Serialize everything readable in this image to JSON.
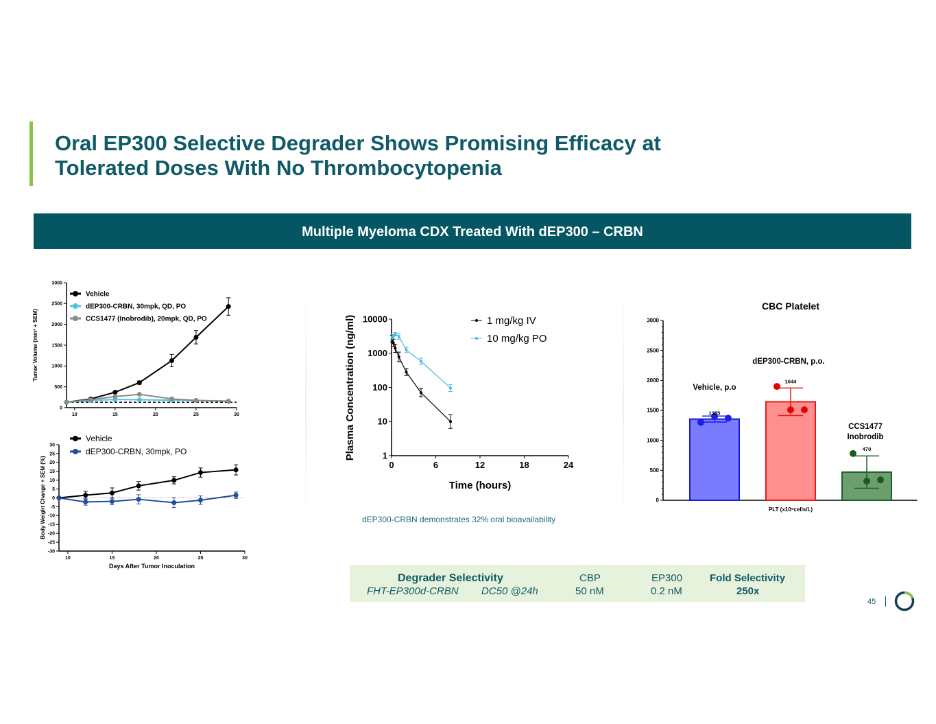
{
  "slide": {
    "title_line1": "Oral EP300 Selective Degrader Shows Promising Efficacy at",
    "title_line2": "Tolerated Doses With No Thrombocytopenia",
    "banner": "Multiple Myeloma CDX Treated With dEP300 – CRBN",
    "caption": "dEP300-CRBN demonstrates 32% oral bioavailability",
    "page_number": "45"
  },
  "selectivity": {
    "header": "Degrader Selectivity",
    "compound": "FHT-EP300d-CRBN",
    "metric": "DC50 @24h",
    "cbp_label": "CBP",
    "cbp_value": "50 nM",
    "ep300_label": "EP300",
    "ep300_value": "0.2 nM",
    "fold_label": "Fold Selectivity",
    "fold_value": "250x"
  },
  "chart_data": [
    {
      "type": "line",
      "title": "",
      "xlabel": "",
      "ylabel": "Tumor Volume (mm³ + SEM)",
      "xlim": [
        9,
        30
      ],
      "ylim": [
        0,
        3000
      ],
      "xticks": [
        10,
        15,
        20,
        25,
        30
      ],
      "yticks": [
        0,
        500,
        1000,
        1500,
        2000,
        2500,
        3000
      ],
      "legend": "top-left",
      "x": [
        9,
        12,
        15,
        18,
        22,
        25,
        29
      ],
      "series": [
        {
          "name": "Vehicle",
          "color": "#000000",
          "values": [
            130,
            210,
            370,
            600,
            1130,
            1690,
            2430
          ],
          "err": [
            0,
            20,
            25,
            40,
            150,
            160,
            210
          ]
        },
        {
          "name": "dEP300-CRBN, 30mpk, QD, PO",
          "color": "#4fc3e0",
          "values": [
            130,
            170,
            195,
            190,
            180,
            170,
            160
          ],
          "err": [
            0,
            0,
            0,
            0,
            0,
            0,
            0
          ]
        },
        {
          "name": "CCS1477 (Inobrodib), 20mpk, QD, PO",
          "color": "#8a8a8a",
          "values": [
            130,
            190,
            265,
            320,
            210,
            175,
            150
          ],
          "err": [
            0,
            0,
            0,
            0,
            0,
            0,
            0
          ]
        }
      ]
    },
    {
      "type": "line",
      "title": "",
      "xlabel": "Days After Tumor Inoculation",
      "ylabel": "Body Weight Change + SEM (%)",
      "xlim": [
        9,
        30
      ],
      "ylim": [
        -30,
        30
      ],
      "xticks": [
        10,
        15,
        20,
        25,
        30
      ],
      "yticks": [
        -30,
        -25,
        -20,
        -15,
        -10,
        -5,
        0,
        5,
        10,
        15,
        20,
        25,
        30
      ],
      "legend": "top-left",
      "x": [
        9,
        12,
        15,
        18,
        22,
        25,
        29
      ],
      "series": [
        {
          "name": "Vehicle",
          "color": "#000000",
          "values": [
            0,
            1.5,
            2.8,
            6.8,
            9.9,
            14.3,
            15.8
          ],
          "err": [
            0,
            2.2,
            2.8,
            2.4,
            2,
            2.6,
            2.9
          ]
        },
        {
          "name": "dEP300-CRBN, 30mpk, PO",
          "color": "#1f4e9c",
          "values": [
            0,
            -2.3,
            -2,
            -0.8,
            -2.7,
            -1.3,
            1.5
          ],
          "err": [
            0,
            1.8,
            1.8,
            2.6,
            2.8,
            2.4,
            1.8
          ]
        }
      ]
    },
    {
      "type": "line",
      "title": "",
      "xlabel": "Time (hours)",
      "ylabel": "Plasma Concentration (ng/ml)",
      "xlim": [
        0,
        24
      ],
      "ylim": [
        1,
        10000
      ],
      "yscale": "log",
      "xticks": [
        0,
        6,
        12,
        18,
        24
      ],
      "yticks": [
        1,
        10,
        100,
        1000,
        10000
      ],
      "legend": "top-right",
      "series": [
        {
          "name": "1 mg/kg IV",
          "color": "#000000",
          "x": [
            0.083,
            0.25,
            0.5,
            1,
            2,
            4,
            8
          ],
          "values": [
            2700,
            2000,
            1400,
            780,
            280,
            70,
            10
          ],
          "err": [
            0.1,
            0.1,
            0.12,
            0.14,
            0.1,
            0.12,
            0.2
          ]
        },
        {
          "name": "10 mg/kg PO",
          "color": "#4fb8dc",
          "x": [
            0.083,
            0.25,
            0.5,
            1,
            2,
            4,
            8
          ],
          "values": [
            2900,
            3200,
            3600,
            3100,
            1250,
            580,
            95
          ],
          "err": [
            0.05,
            0.05,
            0.05,
            0.08,
            0.08,
            0.09,
            0.1
          ]
        }
      ]
    },
    {
      "type": "bar",
      "title": "CBC Platelet",
      "xlabel": "PLT (x10⁹cells/L)",
      "ylabel": "",
      "ylim": [
        0,
        3000
      ],
      "yticks": [
        0,
        500,
        1000,
        1500,
        2000,
        2500,
        3000
      ],
      "categories": [
        "Vehicle, p.o",
        "dEP300-CRBN, p.o.",
        "CCS1477 Inobrodib"
      ],
      "values": [
        1355,
        1644,
        470
      ],
      "value_labels": [
        "1355",
        "1644",
        "470"
      ],
      "sd": [
        50,
        230,
        270
      ],
      "points": [
        [
          1300,
          1400,
          1370
        ],
        [
          1900,
          1510,
          1510
        ],
        [
          780,
          320,
          340
        ]
      ],
      "fill": [
        "#7b7bff",
        "#ff8f8f",
        "#6d9e6d"
      ],
      "stroke": [
        "#1c1cd6",
        "#e01c1c",
        "#1e5e2a"
      ],
      "dot": [
        "#1e1ee6",
        "#e60000",
        "#1a5c1a"
      ]
    }
  ]
}
